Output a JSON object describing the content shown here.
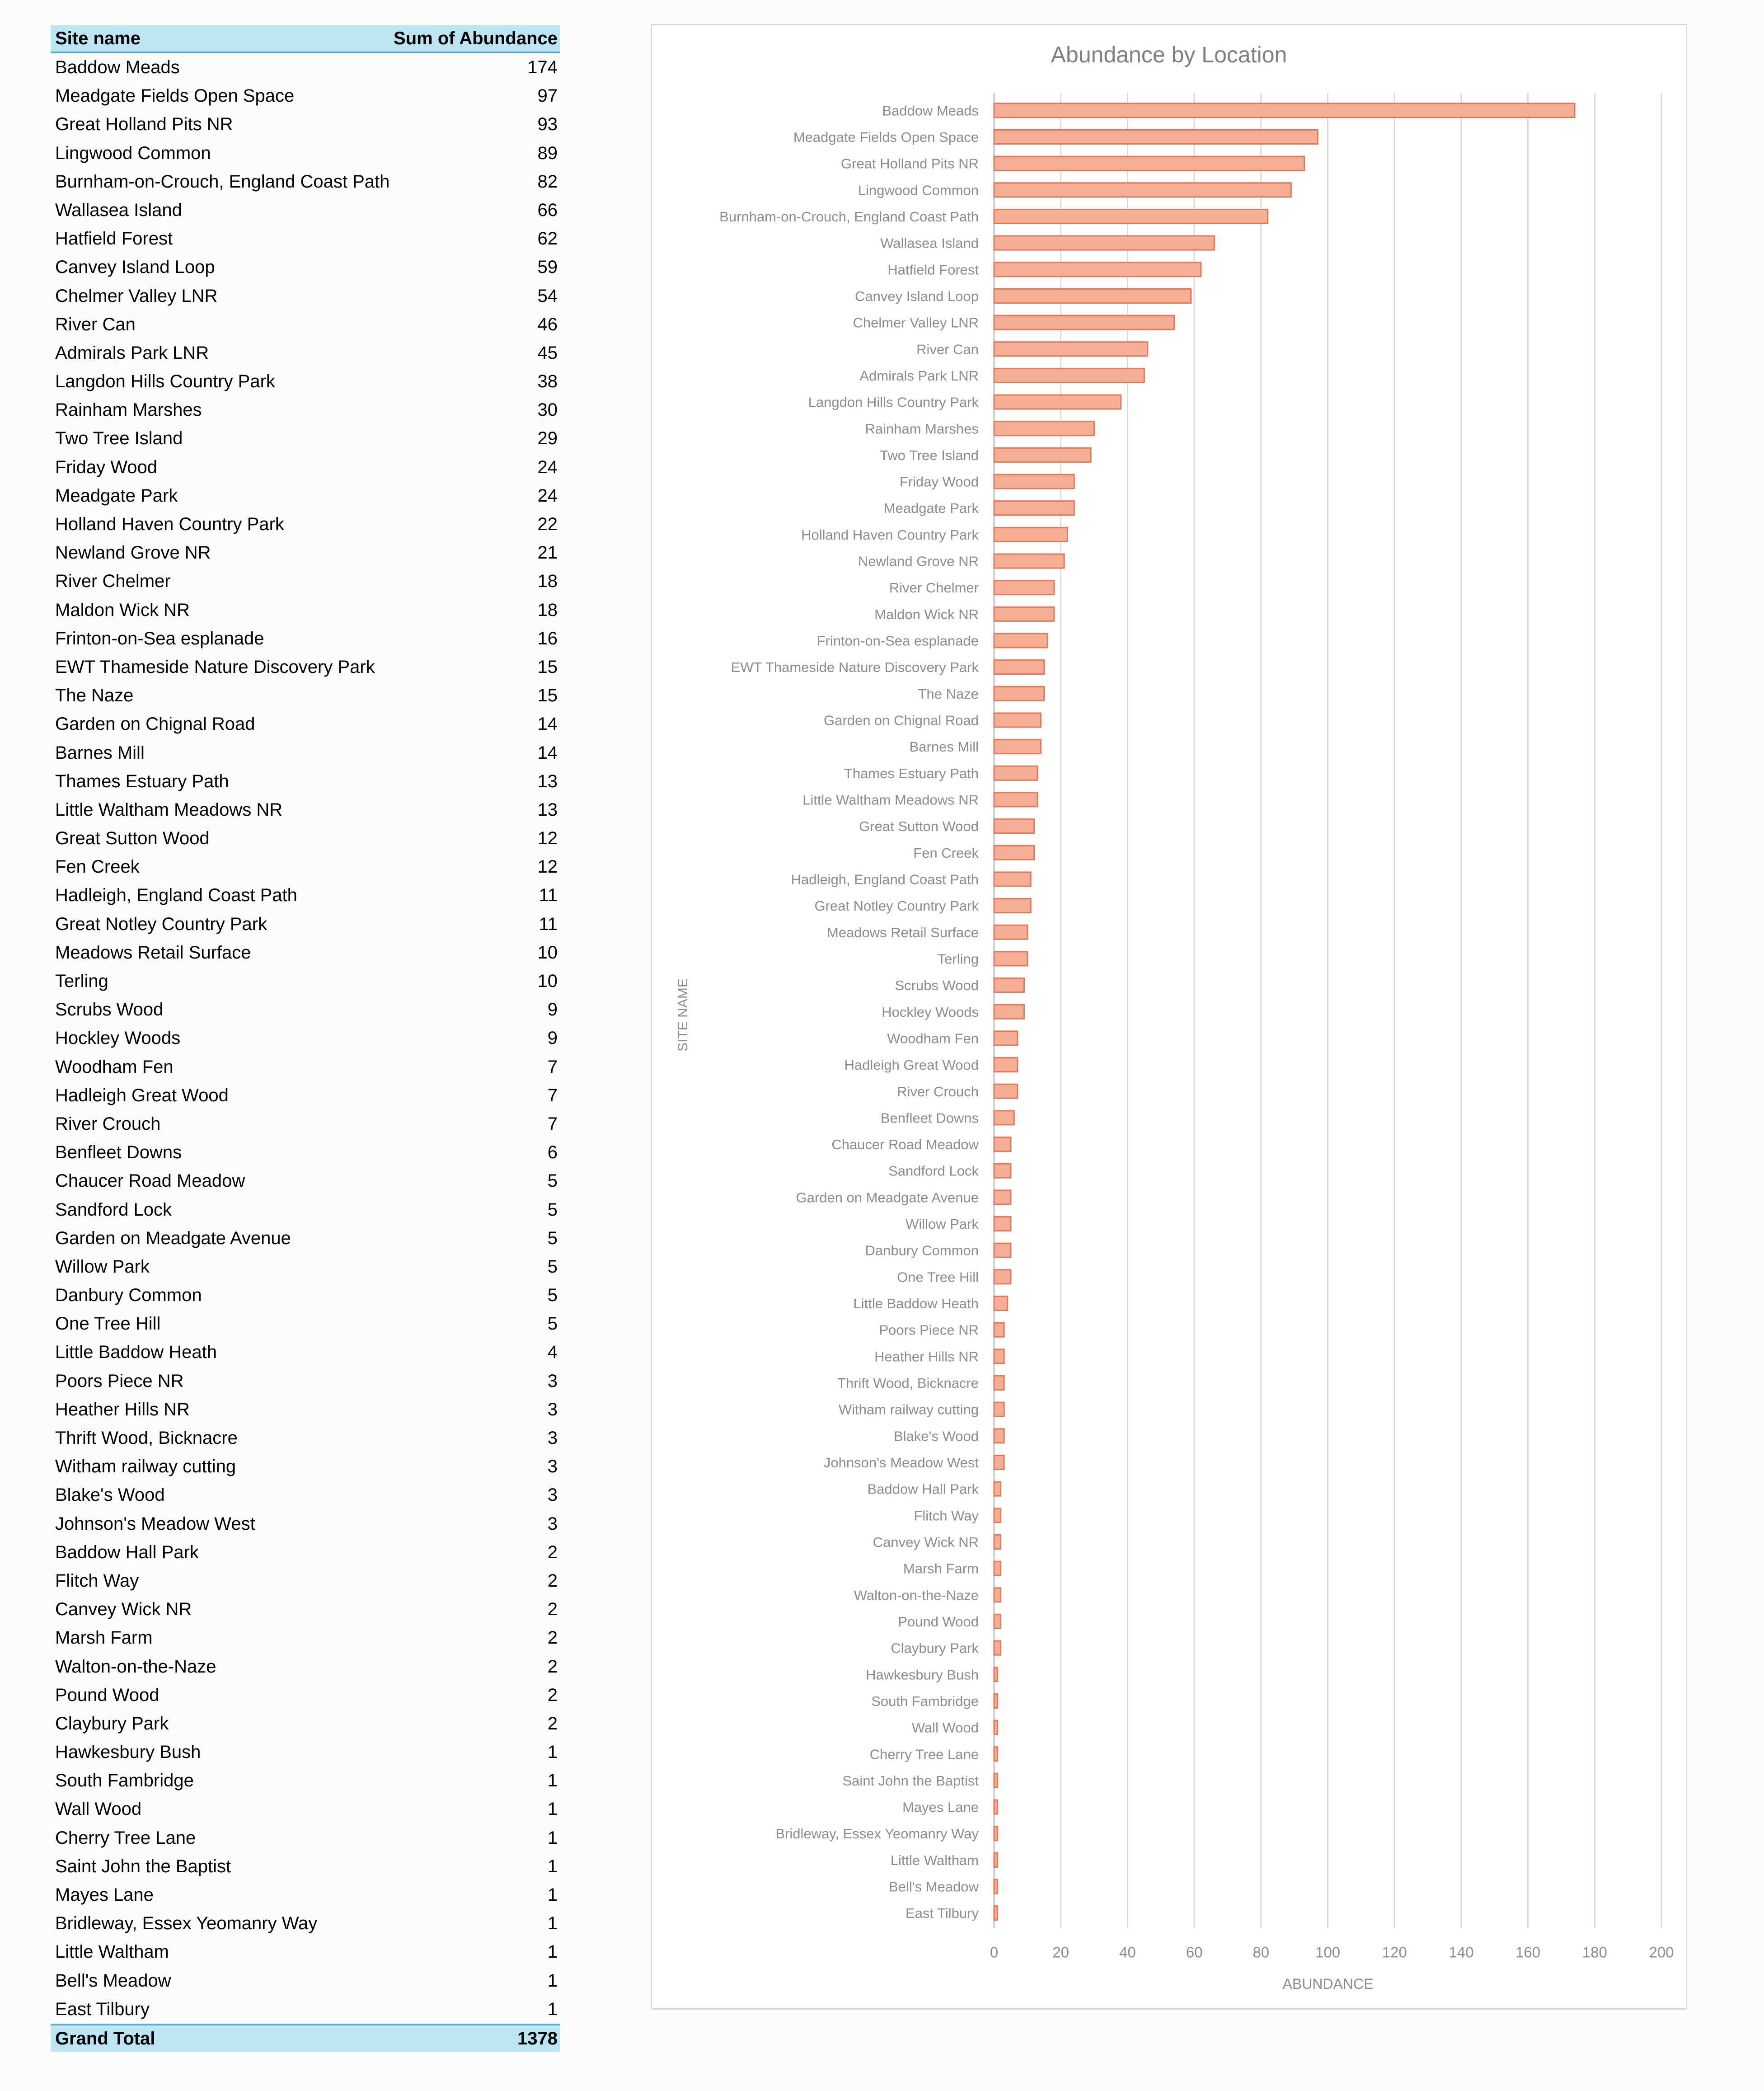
{
  "table": {
    "header_site": "Site name",
    "header_sum": "Sum of Abundance",
    "grand_total_label": "Grand Total",
    "grand_total_value": "1378"
  },
  "chart_data": {
    "type": "bar",
    "orientation": "horizontal",
    "title": "Abundance by Location",
    "xlabel": "ABUNDANCE",
    "ylabel": "SITE NAME",
    "xlim": [
      0,
      200
    ],
    "xticks": [
      0,
      20,
      40,
      60,
      80,
      100,
      120,
      140,
      160,
      180,
      200
    ],
    "grid": "vertical",
    "bar_color": "#f4ae94",
    "bar_edge_color": "#e4785a",
    "categories": [
      "Baddow Meads",
      "Meadgate Fields Open Space",
      "Great Holland Pits NR",
      "Lingwood Common",
      "Burnham-on-Crouch, England Coast Path",
      "Wallasea Island",
      "Hatfield Forest",
      "Canvey Island Loop",
      "Chelmer Valley LNR",
      "River Can",
      "Admirals Park LNR",
      "Langdon Hills Country Park",
      "Rainham Marshes",
      "Two Tree Island",
      "Friday Wood",
      "Meadgate Park",
      "Holland Haven Country Park",
      "Newland Grove NR",
      "River Chelmer",
      "Maldon Wick NR",
      "Frinton-on-Sea esplanade",
      "EWT Thameside Nature Discovery Park",
      "The Naze",
      "Garden on Chignal Road",
      "Barnes Mill",
      "Thames Estuary Path",
      "Little Waltham Meadows NR",
      "Great Sutton Wood",
      "Fen Creek",
      "Hadleigh, England Coast Path",
      "Great Notley Country Park",
      "Meadows Retail Surface",
      "Terling",
      "Scrubs Wood",
      "Hockley Woods",
      "Woodham Fen",
      "Hadleigh Great Wood",
      "River Crouch",
      "Benfleet Downs",
      "Chaucer Road Meadow",
      "Sandford Lock",
      "Garden on Meadgate Avenue",
      "Willow Park",
      "Danbury Common",
      "One Tree Hill",
      "Little Baddow Heath",
      "Poors Piece NR",
      "Heather Hills NR",
      "Thrift Wood, Bicknacre",
      "Witham railway cutting",
      "Blake's Wood",
      "Johnson's Meadow West",
      "Baddow Hall Park",
      "Flitch Way",
      "Canvey Wick NR",
      "Marsh Farm",
      "Walton-on-the-Naze",
      "Pound Wood",
      "Claybury Park",
      "Hawkesbury Bush",
      "South Fambridge",
      "Wall Wood",
      "Cherry Tree Lane",
      "Saint John the Baptist",
      "Mayes Lane",
      "Bridleway, Essex Yeomanry Way",
      "Little Waltham",
      "Bell's Meadow",
      "East Tilbury"
    ],
    "values": [
      174,
      97,
      93,
      89,
      82,
      66,
      62,
      59,
      54,
      46,
      45,
      38,
      30,
      29,
      24,
      24,
      22,
      21,
      18,
      18,
      16,
      15,
      15,
      14,
      14,
      13,
      13,
      12,
      12,
      11,
      11,
      10,
      10,
      9,
      9,
      7,
      7,
      7,
      6,
      5,
      5,
      5,
      5,
      5,
      5,
      4,
      3,
      3,
      3,
      3,
      3,
      3,
      2,
      2,
      2,
      2,
      2,
      2,
      2,
      1,
      1,
      1,
      1,
      1,
      1,
      1,
      1,
      1,
      1
    ]
  }
}
